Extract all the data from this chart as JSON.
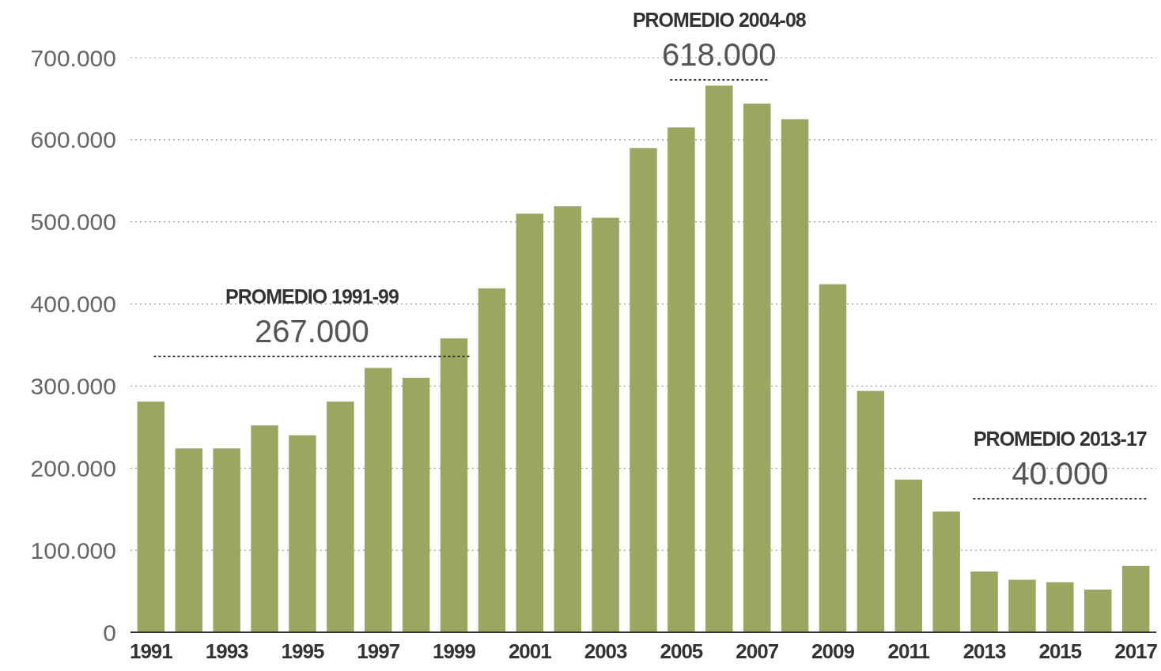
{
  "chart_data": {
    "type": "bar",
    "categories": [
      "1991",
      null,
      "1993",
      null,
      "1995",
      null,
      "1997",
      null,
      "1999",
      null,
      "2001",
      null,
      "2003",
      null,
      "2005",
      null,
      "2007",
      null,
      "2009",
      null,
      "2011",
      null,
      "2013",
      null,
      "2015",
      null,
      "2017"
    ],
    "values": [
      281000,
      224000,
      224000,
      252000,
      240000,
      281000,
      322000,
      310000,
      358000,
      419000,
      510000,
      519000,
      505000,
      590000,
      615000,
      666000,
      644000,
      625000,
      424000,
      294000,
      186000,
      147000,
      74000,
      64000,
      61000,
      52000,
      81000
    ],
    "color": "#9aa760",
    "ylim": [
      0,
      700000
    ],
    "yticks": [
      0,
      {
        "value": 100000,
        "label": "100.000"
      },
      {
        "value": 200000,
        "label": "200.000"
      },
      {
        "value": 300000,
        "label": "300.000"
      },
      {
        "value": 400000,
        "label": "400.000"
      },
      {
        "value": 500000,
        "label": "500.000"
      },
      {
        "value": 600000,
        "label": "600.000"
      },
      {
        "value": 700000,
        "label": "700.000"
      }
    ],
    "grid": "y",
    "annotations": [
      "PROMEDIO 1991-99",
      "267.000",
      "PROMEDIO 2004-08",
      "618.000",
      "PROMEDIO 2013-17",
      "40.000"
    ]
  }
}
